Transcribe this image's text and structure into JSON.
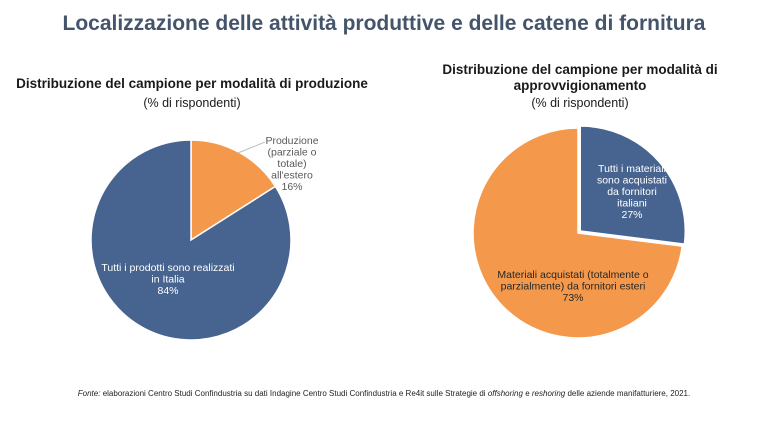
{
  "page": {
    "title": "Localizzazione delle attività produttive e delle catene di fornitura",
    "footer": {
      "source_label": "Fonte:",
      "part1": "elaborazioni Centro Studi Confindustria su dati Indagine Centro Studi Confindustria e Re4it sulle Strategie di",
      "italic1": "offshoring",
      "part2": "e",
      "italic2": "reshoring",
      "part3": "delle aziende manifatturiere, 2021."
    }
  },
  "colors": {
    "blue": "#46648f",
    "orange": "#f4994b",
    "title": "#44546a"
  },
  "chart_data": [
    {
      "type": "pie",
      "title": "Distribuzione del campione per modalità di produzione",
      "subtitle": "(% di rispondenti)",
      "categories": [
        "Produzione (parziale o totale) all'estero",
        "Tutti i prodotti sono realizzati in Italia"
      ],
      "values": [
        16,
        84
      ],
      "unit": "%",
      "slices": [
        {
          "label_lines": [
            "Produzione",
            "(parziale o",
            "totale)",
            "all'estero",
            "16%"
          ],
          "value": 16,
          "color": "#f4994b"
        },
        {
          "label_lines": [
            "Tutti i prodotti sono realizzati",
            "in Italia",
            "84%"
          ],
          "value": 84,
          "color": "#46648f"
        }
      ]
    },
    {
      "type": "pie",
      "title": "Distribuzione del campione per modalità di approvvigionamento",
      "title_lines": [
        "Distribuzione del campione per modalità di",
        "approvvigionamento"
      ],
      "subtitle": "(% di rispondenti)",
      "categories": [
        "Tutti i materiali sono acquistati da fornitori italiani",
        "Materiali acquistati (totalmente o parzialmente) da fornitori esteri"
      ],
      "values": [
        27,
        73
      ],
      "unit": "%",
      "slices": [
        {
          "label_lines": [
            "Tutti i materiali",
            "sono acquistati",
            "da fornitori",
            "italiani",
            "27%"
          ],
          "value": 27,
          "color": "#46648f"
        },
        {
          "label_lines": [
            "Materiali acquistati (totalmente o",
            "parzialmente) da fornitori esteri",
            "73%"
          ],
          "value": 73,
          "color": "#f4994b"
        }
      ]
    }
  ]
}
